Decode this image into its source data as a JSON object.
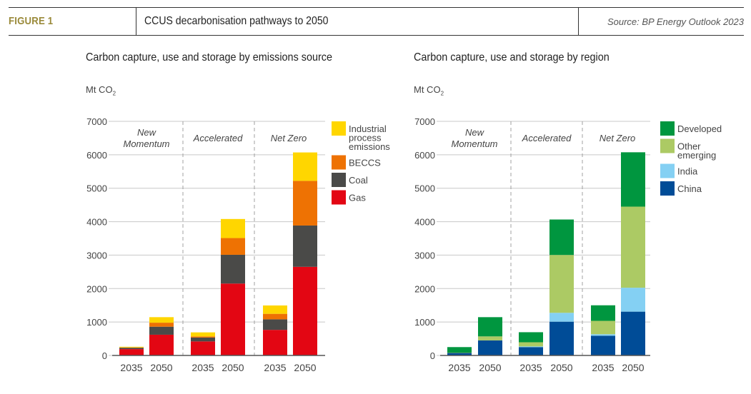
{
  "header": {
    "figure_label": "FIGURE 1",
    "title": "CCUS decarbonisation pathways to 2050",
    "source": "Source: BP Energy Outlook 2023"
  },
  "chart_data": [
    {
      "type": "bar",
      "stacked": true,
      "title": "Carbon capture, use and storage by emissions source",
      "ylabel": "Mt CO2",
      "unit_main": "Mt CO",
      "unit_sub": "2",
      "ylim": [
        0,
        7000
      ],
      "yticks": [
        0,
        1000,
        2000,
        3000,
        4000,
        5000,
        6000,
        7000
      ],
      "grid": true,
      "legend_position": "right",
      "groups": [
        "New Momentum",
        "Accelerated",
        "Net Zero"
      ],
      "group_labels": [
        [
          "New",
          "Momentum"
        ],
        [
          "Accelerated"
        ],
        [
          "Net Zero"
        ]
      ],
      "categories": [
        "2035",
        "2050",
        "2035",
        "2050",
        "2035",
        "2050"
      ],
      "series": [
        {
          "name": "Gas",
          "color": "#e30613",
          "values": [
            190,
            620,
            420,
            2150,
            765,
            2650
          ]
        },
        {
          "name": "Coal",
          "color": "#4a4a48",
          "values": [
            40,
            240,
            115,
            860,
            315,
            1235
          ]
        },
        {
          "name": "BECCS",
          "color": "#ee7203",
          "values": [
            10,
            120,
            35,
            500,
            165,
            1335
          ]
        },
        {
          "name": "Industrial process emissions",
          "color": "#ffd600",
          "values": [
            20,
            165,
            120,
            570,
            250,
            850
          ]
        }
      ],
      "legend": [
        {
          "name": [
            "Industrial",
            "process",
            "emissions"
          ],
          "color": "#ffd600"
        },
        {
          "name": [
            "BECCS"
          ],
          "color": "#ee7203"
        },
        {
          "name": [
            "Coal"
          ],
          "color": "#4a4a48"
        },
        {
          "name": [
            "Gas"
          ],
          "color": "#e30613"
        }
      ]
    },
    {
      "type": "bar",
      "stacked": true,
      "title": "Carbon capture, use and storage by region",
      "ylabel": "Mt CO2",
      "unit_main": "Mt CO",
      "unit_sub": "2",
      "ylim": [
        0,
        7000
      ],
      "yticks": [
        0,
        1000,
        2000,
        3000,
        4000,
        5000,
        6000,
        7000
      ],
      "grid": true,
      "legend_position": "right",
      "groups": [
        "New Momentum",
        "Accelerated",
        "Net Zero"
      ],
      "group_labels": [
        [
          "New",
          "Momentum"
        ],
        [
          "Accelerated"
        ],
        [
          "Net Zero"
        ]
      ],
      "categories": [
        "2035",
        "2050",
        "2035",
        "2050",
        "2035",
        "2050"
      ],
      "series": [
        {
          "name": "China",
          "color": "#004c97",
          "values": [
            75,
            450,
            250,
            1010,
            590,
            1310
          ]
        },
        {
          "name": "India",
          "color": "#84d0f3",
          "values": [
            0,
            0,
            20,
            265,
            45,
            715
          ]
        },
        {
          "name": "Other emerging",
          "color": "#acca64",
          "values": [
            10,
            120,
            125,
            1730,
            400,
            2425
          ]
        },
        {
          "name": "Developed",
          "color": "#00963f",
          "values": [
            165,
            575,
            300,
            1060,
            465,
            1625
          ]
        }
      ],
      "legend": [
        {
          "name": [
            "Developed"
          ],
          "color": "#00963f"
        },
        {
          "name": [
            "Other",
            "emerging"
          ],
          "color": "#acca64"
        },
        {
          "name": [
            "India"
          ],
          "color": "#84d0f3"
        },
        {
          "name": [
            "China"
          ],
          "color": "#004c97"
        }
      ]
    }
  ]
}
